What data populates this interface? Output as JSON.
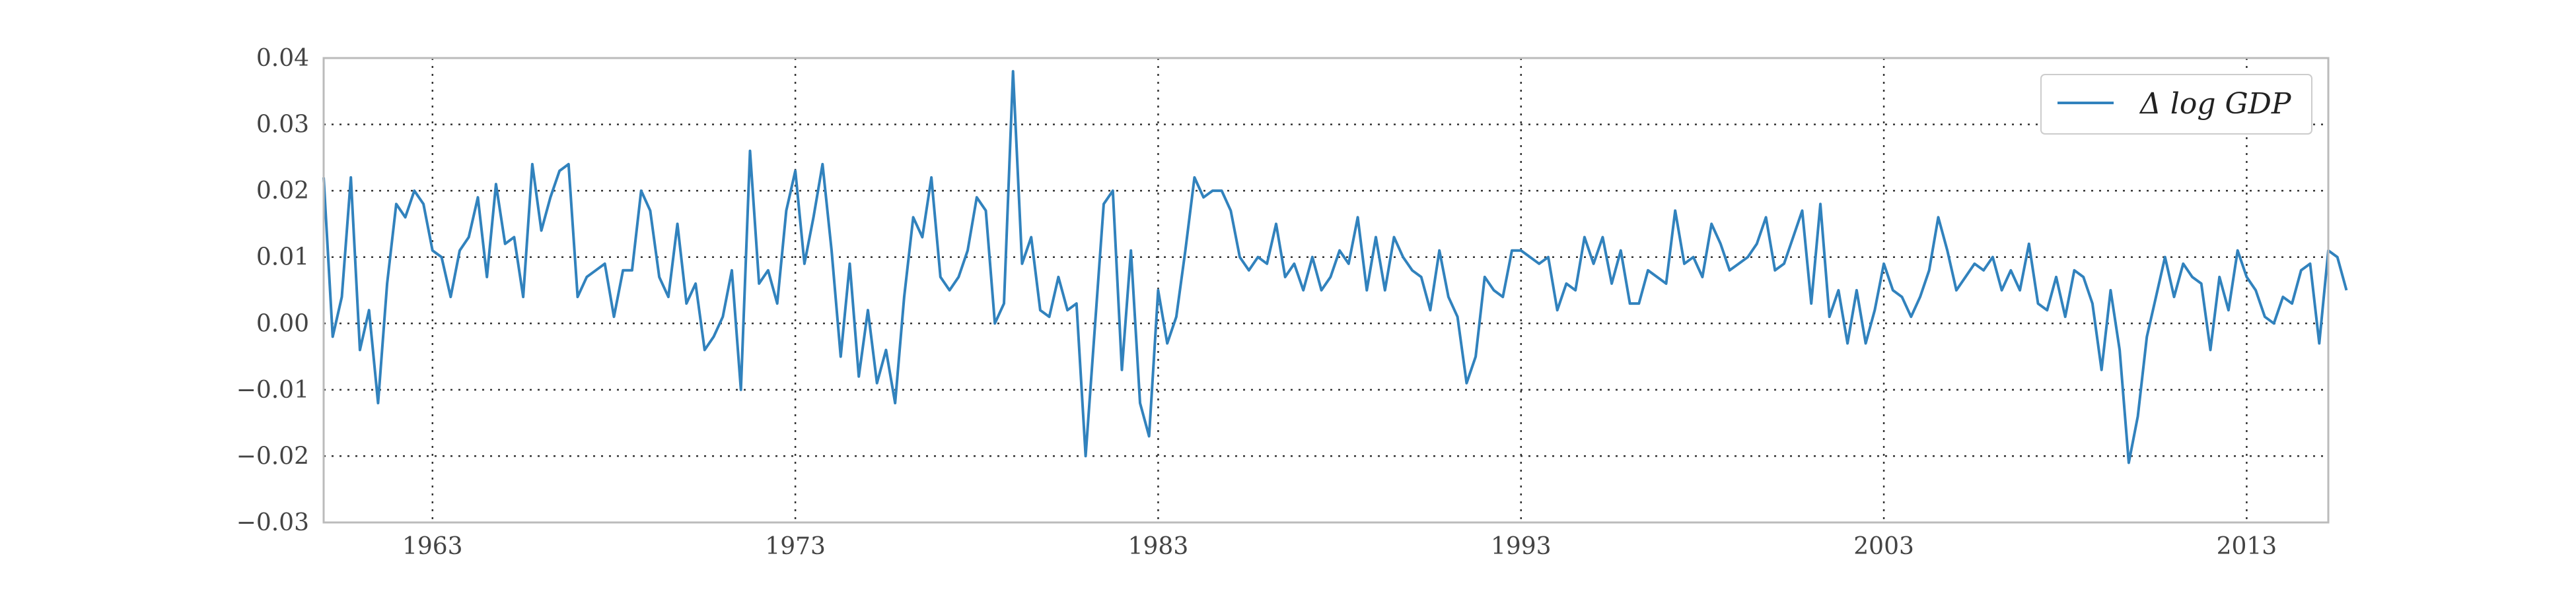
{
  "chart_data": {
    "type": "line",
    "title": "",
    "xlabel": "",
    "ylabel": "",
    "xlim": [
      1960.0,
      2015.25
    ],
    "ylim": [
      -0.03,
      0.04
    ],
    "x_ticks": [
      1963,
      1973,
      1983,
      1993,
      2003,
      2013
    ],
    "x_tick_labels": [
      "1963",
      "1973",
      "1983",
      "1993",
      "2003",
      "2013"
    ],
    "y_ticks": [
      -0.03,
      -0.02,
      -0.01,
      0.0,
      0.01,
      0.02,
      0.03,
      0.04
    ],
    "y_tick_labels": [
      "−0.03",
      "−0.02",
      "−0.01",
      "0.00",
      "0.01",
      "0.02",
      "0.03",
      "0.04"
    ],
    "grid": true,
    "legend": {
      "position": "top-right",
      "entries": [
        "Δ log GDP"
      ]
    },
    "series": [
      {
        "name": "Δ log GDP",
        "color": "#3182bd",
        "x_start": 1960.0,
        "x_step": 0.25,
        "values": [
          0.022,
          -0.002,
          0.004,
          0.022,
          -0.004,
          0.002,
          -0.012,
          0.006,
          0.018,
          0.016,
          0.02,
          0.018,
          0.011,
          0.01,
          0.004,
          0.011,
          0.013,
          0.019,
          0.007,
          0.021,
          0.012,
          0.013,
          0.004,
          0.024,
          0.014,
          0.019,
          0.023,
          0.024,
          0.004,
          0.007,
          0.008,
          0.009,
          0.001,
          0.008,
          0.008,
          0.02,
          0.017,
          0.007,
          0.004,
          0.015,
          0.003,
          0.006,
          -0.004,
          -0.002,
          0.001,
          0.008,
          -0.01,
          0.026,
          0.006,
          0.008,
          0.003,
          0.017,
          0.023,
          0.009,
          0.016,
          0.024,
          0.011,
          -0.005,
          0.009,
          -0.008,
          0.002,
          -0.009,
          -0.004,
          -0.012,
          0.004,
          0.016,
          0.013,
          0.022,
          0.007,
          0.005,
          0.007,
          0.011,
          0.019,
          0.017,
          0.0,
          0.003,
          0.038,
          0.009,
          0.013,
          0.002,
          0.001,
          0.007,
          0.002,
          0.003,
          -0.02,
          -0.001,
          0.018,
          0.02,
          -0.007,
          0.011,
          -0.012,
          -0.017,
          0.005,
          -0.003,
          0.001,
          0.011,
          0.022,
          0.019,
          0.02,
          0.02,
          0.017,
          0.01,
          0.008,
          0.01,
          0.009,
          0.015,
          0.007,
          0.009,
          0.005,
          0.01,
          0.005,
          0.007,
          0.011,
          0.009,
          0.016,
          0.005,
          0.013,
          0.005,
          0.013,
          0.01,
          0.008,
          0.007,
          0.002,
          0.011,
          0.004,
          0.001,
          -0.009,
          -0.005,
          0.007,
          0.005,
          0.004,
          0.011,
          0.011,
          0.01,
          0.009,
          0.01,
          0.002,
          0.006,
          0.005,
          0.013,
          0.009,
          0.013,
          0.006,
          0.011,
          0.003,
          0.003,
          0.008,
          0.007,
          0.006,
          0.017,
          0.009,
          0.01,
          0.007,
          0.015,
          0.012,
          0.008,
          0.009,
          0.01,
          0.012,
          0.016,
          0.008,
          0.009,
          0.013,
          0.017,
          0.003,
          0.018,
          0.001,
          0.005,
          -0.003,
          0.005,
          -0.003,
          0.002,
          0.009,
          0.005,
          0.004,
          0.001,
          0.004,
          0.008,
          0.016,
          0.011,
          0.005,
          0.007,
          0.009,
          0.008,
          0.01,
          0.005,
          0.008,
          0.005,
          0.012,
          0.003,
          0.002,
          0.007,
          0.001,
          0.008,
          0.007,
          0.003,
          -0.007,
          0.005,
          -0.004,
          -0.021,
          -0.014,
          -0.002,
          0.004,
          0.01,
          0.004,
          0.009,
          0.007,
          0.006,
          -0.004,
          0.007,
          0.002,
          0.011,
          0.007,
          0.005,
          0.001,
          0.0,
          0.004,
          0.003,
          0.008,
          0.009,
          -0.003,
          0.011,
          0.01,
          0.005
        ]
      }
    ]
  }
}
